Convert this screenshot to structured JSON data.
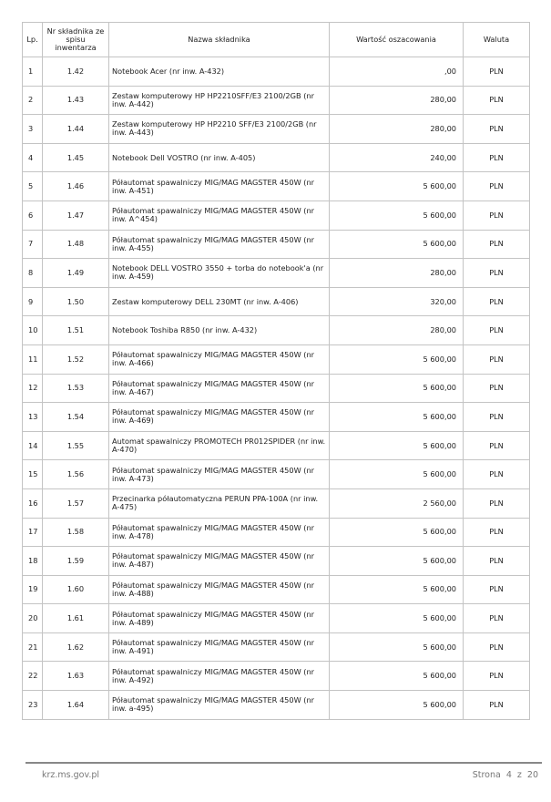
{
  "table": {
    "headers": {
      "lp": "Lp.",
      "nr": "Nr składnika ze spisu inwentarza",
      "name": "Nazwa składnika",
      "value": "Wartość oszacowania",
      "currency": "Waluta"
    },
    "rows": [
      {
        "lp": "1",
        "nr": "1.42",
        "name": "Notebook Acer (nr inw. A-432)",
        "value": ",00",
        "currency": "PLN"
      },
      {
        "lp": "2",
        "nr": "1.43",
        "name": "Zestaw komputerowy HP HP2210SFF/E3 2100/2GB (nr inw. A-442)",
        "value": "280,00",
        "currency": "PLN"
      },
      {
        "lp": "3",
        "nr": "1.44",
        "name": "Zestaw komputerowy HP HP2210 SFF/E3 2100/2GB (nr inw. A-443)",
        "value": "280,00",
        "currency": "PLN"
      },
      {
        "lp": "4",
        "nr": "1.45",
        "name": "Notebook Dell VOSTRO (nr inw. A-405)",
        "value": "240,00",
        "currency": "PLN"
      },
      {
        "lp": "5",
        "nr": "1.46",
        "name": "Półautomat spawalniczy MIG/MAG MAGSTER 450W (nr inw. A-451)",
        "value": "5 600,00",
        "currency": "PLN"
      },
      {
        "lp": "6",
        "nr": "1.47",
        "name": "Półautomat spawalniczy MIG/MAG MAGSTER 450W (nr inw. A^454)",
        "value": "5 600,00",
        "currency": "PLN"
      },
      {
        "lp": "7",
        "nr": "1.48",
        "name": "Półautomat spawalniczy MIG/MAG MAGSTER 450W (nr inw. A-455)",
        "value": "5 600,00",
        "currency": "PLN"
      },
      {
        "lp": "8",
        "nr": "1.49",
        "name": "Notebook DELL VOSTRO 3550 + torba do notebook'a (nr inw. A-459)",
        "value": "280,00",
        "currency": "PLN"
      },
      {
        "lp": "9",
        "nr": "1.50",
        "name": "Zestaw komputerowy DELL 230MT (nr inw. A-406)",
        "value": "320,00",
        "currency": "PLN"
      },
      {
        "lp": "10",
        "nr": "1.51",
        "name": "Notebook Toshiba R850 (nr inw. A-432)",
        "value": "280,00",
        "currency": "PLN"
      },
      {
        "lp": "11",
        "nr": "1.52",
        "name": "Półautomat spawalniczy MIG/MAG MAGSTER 450W (nr inw. A-466)",
        "value": "5 600,00",
        "currency": "PLN"
      },
      {
        "lp": "12",
        "nr": "1.53",
        "name": "Półautomat spawalniczy MIG/MAG MAGSTER 450W (nr inw. A-467)",
        "value": "5 600,00",
        "currency": "PLN"
      },
      {
        "lp": "13",
        "nr": "1.54",
        "name": "Półautomat spawalniczy MIG/MAG MAGSTER 450W (nr inw. A-469)",
        "value": "5 600,00",
        "currency": "PLN"
      },
      {
        "lp": "14",
        "nr": "1.55",
        "name": "Automat spawalniczy PROMOTECH PR012SPIDER (nr inw. A-470)",
        "value": "5 600,00",
        "currency": "PLN"
      },
      {
        "lp": "15",
        "nr": "1.56",
        "name": "Półautomat spawalniczy MIG/MAG MAGSTER 450W (nr inw. A-473)",
        "value": "5 600,00",
        "currency": "PLN"
      },
      {
        "lp": "16",
        "nr": "1.57",
        "name": "Przecinarka półautomatyczna PERUN PPA-100A (nr inw. A-475)",
        "value": "2 560,00",
        "currency": "PLN"
      },
      {
        "lp": "17",
        "nr": "1.58",
        "name": "Półautomat spawalniczy MIG/MAG MAGSTER 450W (nr inw. A-478)",
        "value": "5 600,00",
        "currency": "PLN"
      },
      {
        "lp": "18",
        "nr": "1.59",
        "name": "Półautomat spawalniczy MIG/MAG MAGSTER 450W (nr inw. A-487)",
        "value": "5 600,00",
        "currency": "PLN"
      },
      {
        "lp": "19",
        "nr": "1.60",
        "name": "Półautomat spawalniczy MIG/MAG MAGSTER 450W (nr inw. A-488)",
        "value": "5 600,00",
        "currency": "PLN"
      },
      {
        "lp": "20",
        "nr": "1.61",
        "name": "Półautomat spawalniczy MIG/MAG MAGSTER 450W (nr inw. A-489)",
        "value": "5 600,00",
        "currency": "PLN"
      },
      {
        "lp": "21",
        "nr": "1.62",
        "name": "Półautomat spawalniczy MIG/MAG MAGSTER 450W (nr inw. A-491)",
        "value": "5 600,00",
        "currency": "PLN"
      },
      {
        "lp": "22",
        "nr": "1.63",
        "name": "Półautomat spawalniczy MIG/MAG MAGSTER 450W (nr inw. A-492)",
        "value": "5 600,00",
        "currency": "PLN"
      },
      {
        "lp": "23",
        "nr": "1.64",
        "name": "Półautomat spawalniczy MIG/MAG MAGSTER 450W (nr inw. a-495)",
        "value": "5 600,00",
        "currency": "PLN"
      }
    ]
  },
  "footer": {
    "site": "krz.ms.gov.pl",
    "page": "Strona 4 z 20"
  }
}
